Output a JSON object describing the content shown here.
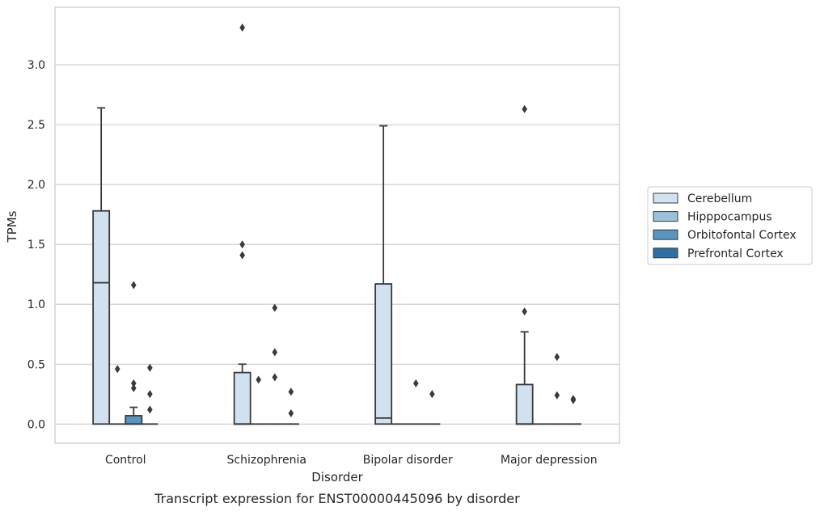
{
  "caption": "Transcript expression for ENST00000445096 by disorder",
  "chart_data": {
    "type": "box",
    "xlabel": "Disorder",
    "ylabel": "TPMs",
    "ylim": [
      -0.16,
      3.48
    ],
    "yticks": [
      "0.0",
      "0.5",
      "1.0",
      "1.5",
      "2.0",
      "2.5",
      "3.0"
    ],
    "ytick_values": [
      0,
      0.5,
      1.0,
      1.5,
      2.0,
      2.5,
      3.0
    ],
    "grid": "horizontal",
    "legend_position": "right",
    "categories": [
      "Control",
      "Schizophrenia",
      "Bipolar disorder",
      "Major depression"
    ],
    "series": [
      {
        "name": "Cerebellum",
        "color": "#d1e1f0",
        "boxes": [
          {
            "q1": 0,
            "median": 1.18,
            "q3": 1.78,
            "whisker_low": 0,
            "whisker_high": 2.64,
            "outliers": []
          },
          {
            "q1": 0,
            "median": 0,
            "q3": 0.43,
            "whisker_low": 0,
            "whisker_high": 0.5,
            "outliers": [
              1.41,
              1.5,
              3.31
            ]
          },
          {
            "q1": 0,
            "median": 0.05,
            "q3": 1.17,
            "whisker_low": 0,
            "whisker_high": 2.49,
            "outliers": []
          },
          {
            "q1": 0,
            "median": 0,
            "q3": 0.33,
            "whisker_low": 0,
            "whisker_high": 0.77,
            "outliers": [
              0.94,
              2.63
            ]
          }
        ]
      },
      {
        "name": "Hipppocampus",
        "color": "#9ac1d9",
        "boxes": [
          {
            "q1": 0,
            "median": 0,
            "q3": 0,
            "whisker_low": 0,
            "whisker_high": 0,
            "outliers": [
              0.46
            ]
          },
          {
            "q1": 0,
            "median": 0,
            "q3": 0,
            "whisker_low": 0,
            "whisker_high": 0,
            "outliers": [
              0.37
            ]
          },
          {
            "q1": 0,
            "median": 0,
            "q3": 0,
            "whisker_low": 0,
            "whisker_high": 0,
            "outliers": []
          },
          {
            "q1": 0,
            "median": 0,
            "q3": 0,
            "whisker_low": 0,
            "whisker_high": 0,
            "outliers": []
          }
        ]
      },
      {
        "name": "Orbitofontal Cortex",
        "color": "#5b94bf",
        "boxes": [
          {
            "q1": 0,
            "median": 0,
            "q3": 0.07,
            "whisker_low": 0,
            "whisker_high": 0.14,
            "outliers": [
              0.3,
              0.34,
              1.16
            ]
          },
          {
            "q1": 0,
            "median": 0,
            "q3": 0,
            "whisker_low": 0,
            "whisker_high": 0,
            "outliers": [
              0.39,
              0.6,
              0.97
            ]
          },
          {
            "q1": 0,
            "median": 0,
            "q3": 0,
            "whisker_low": 0,
            "whisker_high": 0,
            "outliers": [
              0.34
            ]
          },
          {
            "q1": 0,
            "median": 0,
            "q3": 0,
            "whisker_low": 0,
            "whisker_high": 0,
            "outliers": [
              0.24,
              0.56
            ]
          }
        ]
      },
      {
        "name": "Prefrontal Cortex",
        "color": "#2f6ea5",
        "boxes": [
          {
            "q1": 0,
            "median": 0,
            "q3": 0,
            "whisker_low": 0,
            "whisker_high": 0,
            "outliers": [
              0.12,
              0.25,
              0.47
            ]
          },
          {
            "q1": 0,
            "median": 0,
            "q3": 0,
            "whisker_low": 0,
            "whisker_high": 0,
            "outliers": [
              0.09,
              0.27
            ]
          },
          {
            "q1": 0,
            "median": 0,
            "q3": 0,
            "whisker_low": 0,
            "whisker_high": 0,
            "outliers": [
              0.25
            ]
          },
          {
            "q1": 0,
            "median": 0,
            "q3": 0,
            "whisker_low": 0,
            "whisker_high": 0,
            "outliers": [
              0.2,
              0.21
            ]
          }
        ]
      }
    ]
  }
}
